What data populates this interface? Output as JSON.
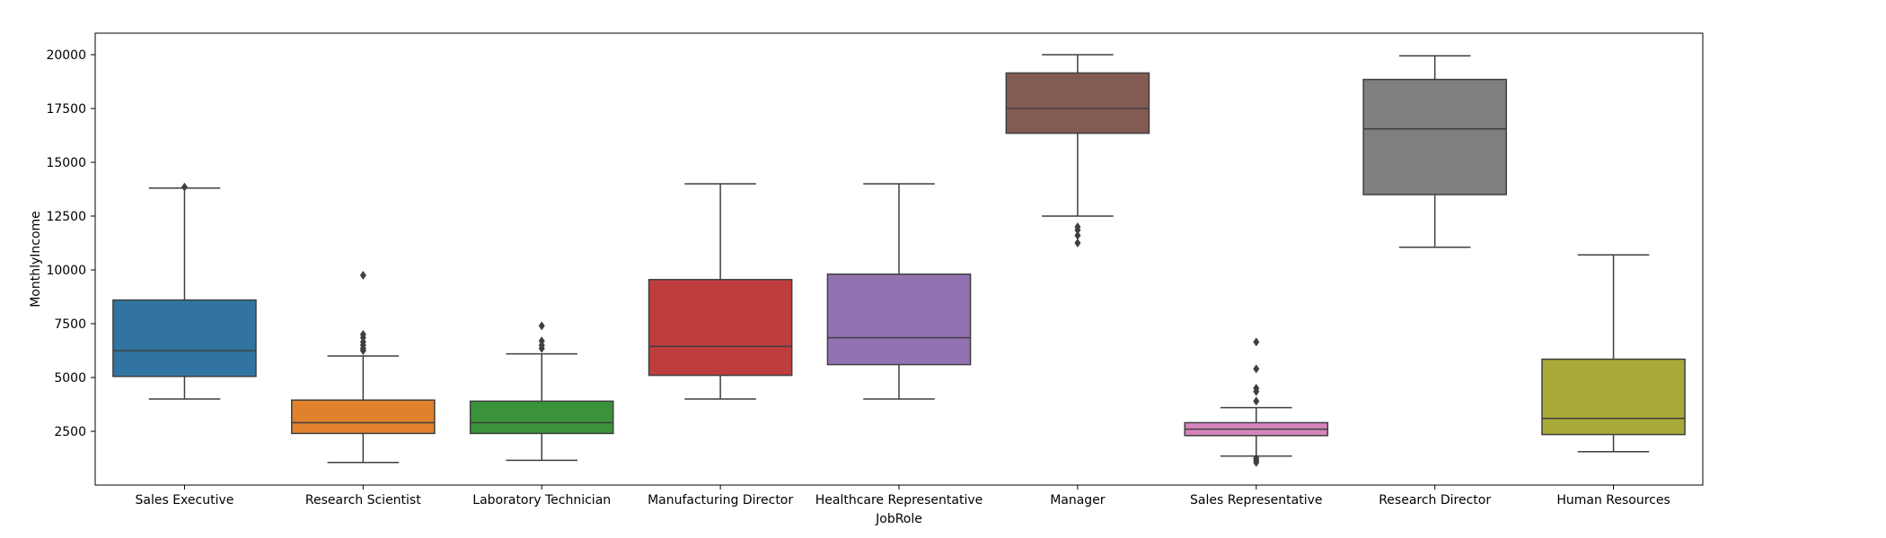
{
  "chart_data": {
    "type": "box",
    "title": "",
    "xlabel": "JobRole",
    "ylabel": "MonthlyIncome",
    "ylim": [
      0,
      21000
    ],
    "yticks": [
      2500,
      5000,
      7500,
      10000,
      12500,
      15000,
      17500,
      20000
    ],
    "grid": false,
    "legend": "none",
    "categories": [
      {
        "name": "Sales Executive",
        "color": "#3274a1",
        "whisker_low": 4000,
        "q1": 5050,
        "median": 6250,
        "q3": 8600,
        "whisker_high": 13800,
        "outliers": [
          13850
        ]
      },
      {
        "name": "Research Scientist",
        "color": "#e1812c",
        "whisker_low": 1050,
        "q1": 2400,
        "median": 2900,
        "q3": 3950,
        "whisker_high": 6000,
        "outliers": [
          6250,
          6350,
          6500,
          6650,
          6850,
          7000,
          9750
        ]
      },
      {
        "name": "Laboratory Technician",
        "color": "#3a923a",
        "whisker_low": 1150,
        "q1": 2400,
        "median": 2900,
        "q3": 3900,
        "whisker_high": 6100,
        "outliers": [
          6350,
          6500,
          6700,
          7400
        ]
      },
      {
        "name": "Manufacturing Director",
        "color": "#c03d3e",
        "whisker_low": 4000,
        "q1": 5100,
        "median": 6450,
        "q3": 9550,
        "whisker_high": 14000,
        "outliers": []
      },
      {
        "name": "Healthcare Representative",
        "color": "#9372b2",
        "whisker_low": 4000,
        "q1": 5600,
        "median": 6850,
        "q3": 9800,
        "whisker_high": 14000,
        "outliers": []
      },
      {
        "name": "Manager",
        "color": "#845b53",
        "whisker_low": 12500,
        "q1": 16350,
        "median": 17500,
        "q3": 19150,
        "whisker_high": 20000,
        "outliers": [
          11250,
          11600,
          11850,
          12000
        ]
      },
      {
        "name": "Sales Representative",
        "color": "#d684bd",
        "whisker_low": 1350,
        "q1": 2300,
        "median": 2600,
        "q3": 2900,
        "whisker_high": 3600,
        "outliers": [
          1050,
          1150,
          1250,
          3900,
          4350,
          4500,
          5400,
          6650
        ]
      },
      {
        "name": "Research Director",
        "color": "#7f7f7f",
        "whisker_low": 11050,
        "q1": 13500,
        "median": 16550,
        "q3": 18850,
        "whisker_high": 19950,
        "outliers": []
      },
      {
        "name": "Human Resources",
        "color": "#a9a938",
        "whisker_low": 1550,
        "q1": 2350,
        "median": 3100,
        "q3": 5850,
        "whisker_high": 10700,
        "outliers": []
      }
    ]
  }
}
